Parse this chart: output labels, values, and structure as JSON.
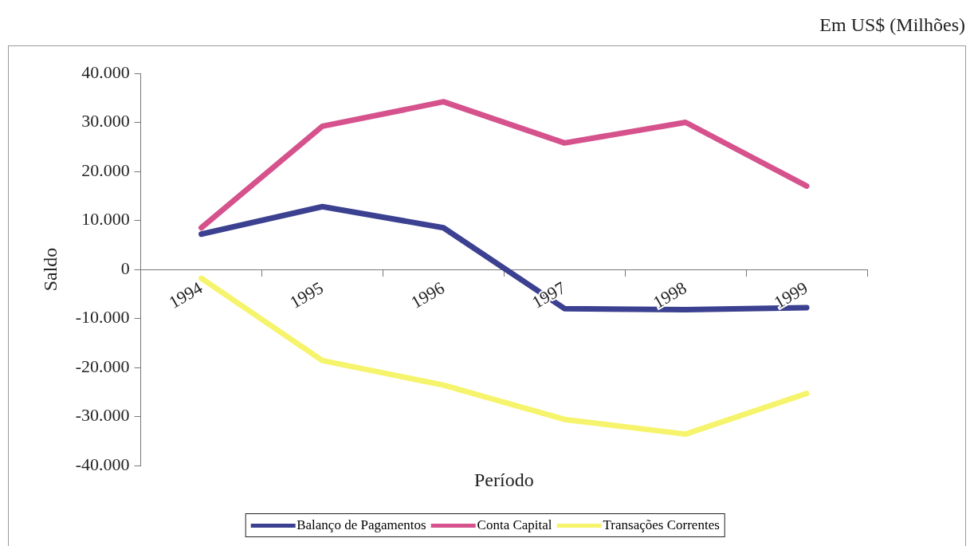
{
  "chart_data": {
    "type": "line",
    "xlabel": "Período",
    "ylabel": "Saldo",
    "annotations": [
      "Em US$ (Milhões)"
    ],
    "categories": [
      "1994",
      "1995",
      "1996",
      "1997",
      "1998",
      "1999"
    ],
    "series": [
      {
        "name": "Balanço de Pagamentos",
        "color": "#3b4190",
        "values": [
          7200,
          12800,
          8500,
          -8000,
          -8200,
          -7800
        ]
      },
      {
        "name": "Conta Capital",
        "color": "#d5528c",
        "values": [
          8500,
          29200,
          34200,
          25800,
          30000,
          17000
        ]
      },
      {
        "name": "Transações Correntes",
        "color": "#f6f46c",
        "values": [
          -1800,
          -18600,
          -23600,
          -30600,
          -33600,
          -25300
        ]
      }
    ],
    "ylim": [
      -40000,
      40000
    ],
    "yticks": [
      {
        "value": -40000,
        "label": "-40.000"
      },
      {
        "value": -30000,
        "label": "-30.000"
      },
      {
        "value": -20000,
        "label": "-20.000"
      },
      {
        "value": -10000,
        "label": "-10.000"
      },
      0,
      {
        "value": 10000,
        "label": "10.000"
      },
      {
        "value": 20000,
        "label": "20.000"
      },
      {
        "value": 30000,
        "label": "30.000"
      },
      {
        "value": 40000,
        "label": "40.000"
      }
    ],
    "grid": false,
    "legend": "bottom",
    "marker": "none",
    "line_style": "solid"
  }
}
